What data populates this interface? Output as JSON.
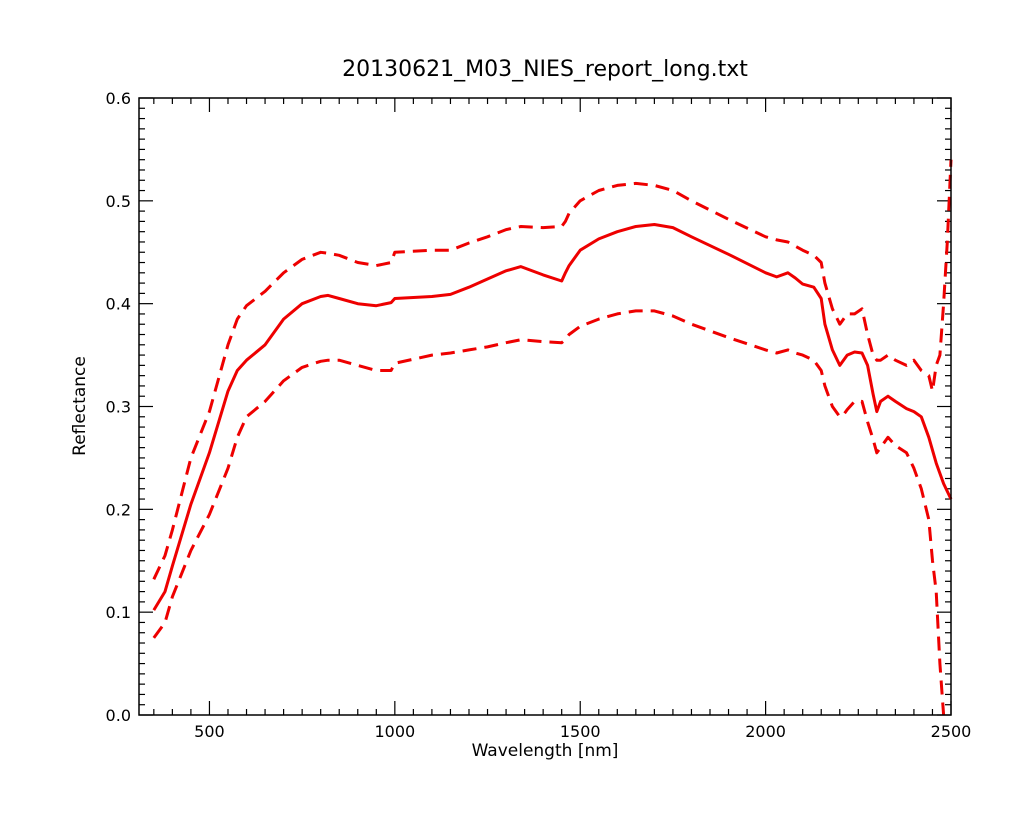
{
  "chart_data": {
    "type": "line",
    "title": "20130621_M03_NIES_report_long.txt",
    "xlabel": "Wavelength [nm]",
    "ylabel": "Reflectance",
    "xlim": [
      310,
      2500
    ],
    "ylim": [
      0.0,
      0.6
    ],
    "x_ticks": [
      500,
      1000,
      1500,
      2000,
      2500
    ],
    "x_tick_labels": [
      "500",
      "1000",
      "1500",
      "2000",
      "2500"
    ],
    "x_minor_step": 50,
    "y_ticks": [
      0.0,
      0.1,
      0.2,
      0.3,
      0.4,
      0.5,
      0.6
    ],
    "y_tick_labels": [
      "0.0",
      "0.1",
      "0.2",
      "0.3",
      "0.4",
      "0.5",
      "0.6"
    ],
    "y_minor_step": 0.01,
    "grid": false,
    "legend": "none",
    "color": "#ee0000",
    "series": [
      {
        "style": "solid",
        "x": [
          350,
          380,
          400,
          450,
          500,
          550,
          575,
          600,
          650,
          700,
          750,
          800,
          820,
          850,
          900,
          950,
          990,
          1000,
          1100,
          1150,
          1200,
          1250,
          1300,
          1340,
          1400,
          1450,
          1460,
          1470,
          1500,
          1550,
          1600,
          1650,
          1700,
          1750,
          1800,
          1900,
          2000,
          2030,
          2060,
          2080,
          2100,
          2130,
          2150,
          2160,
          2180,
          2200,
          2210,
          2220,
          2240,
          2260,
          2275,
          2290,
          2300,
          2310,
          2330,
          2350,
          2380,
          2400,
          2420,
          2440,
          2460,
          2480,
          2500
        ],
        "y": [
          0.102,
          0.12,
          0.145,
          0.205,
          0.255,
          0.315,
          0.335,
          0.345,
          0.36,
          0.385,
          0.4,
          0.407,
          0.408,
          0.405,
          0.4,
          0.398,
          0.401,
          0.405,
          0.407,
          0.409,
          0.416,
          0.424,
          0.432,
          0.436,
          0.428,
          0.422,
          0.43,
          0.437,
          0.452,
          0.463,
          0.47,
          0.475,
          0.477,
          0.474,
          0.465,
          0.448,
          0.43,
          0.426,
          0.43,
          0.425,
          0.419,
          0.416,
          0.405,
          0.38,
          0.355,
          0.34,
          0.345,
          0.35,
          0.353,
          0.352,
          0.34,
          0.312,
          0.295,
          0.305,
          0.31,
          0.305,
          0.298,
          0.295,
          0.29,
          0.27,
          0.245,
          0.225,
          0.21
        ]
      },
      {
        "style": "dashed",
        "x": [
          350,
          380,
          400,
          450,
          500,
          550,
          575,
          600,
          650,
          700,
          750,
          800,
          820,
          850,
          900,
          950,
          990,
          1000,
          1100,
          1150,
          1200,
          1250,
          1300,
          1340,
          1400,
          1450,
          1460,
          1470,
          1500,
          1550,
          1600,
          1650,
          1700,
          1750,
          1800,
          1900,
          2000,
          2030,
          2060,
          2080,
          2100,
          2130,
          2150,
          2160,
          2180,
          2200,
          2210,
          2220,
          2240,
          2260,
          2275,
          2290,
          2300,
          2310,
          2330,
          2350,
          2380,
          2400,
          2420,
          2440,
          2450,
          2460,
          2470,
          2480,
          2490,
          2500
        ],
        "y": [
          0.132,
          0.155,
          0.18,
          0.25,
          0.295,
          0.36,
          0.385,
          0.398,
          0.412,
          0.43,
          0.443,
          0.45,
          0.449,
          0.447,
          0.44,
          0.437,
          0.44,
          0.45,
          0.452,
          0.452,
          0.459,
          0.465,
          0.472,
          0.475,
          0.474,
          0.475,
          0.48,
          0.488,
          0.5,
          0.51,
          0.515,
          0.517,
          0.515,
          0.51,
          0.5,
          0.482,
          0.465,
          0.462,
          0.46,
          0.456,
          0.452,
          0.447,
          0.44,
          0.42,
          0.395,
          0.38,
          0.385,
          0.39,
          0.39,
          0.395,
          0.37,
          0.35,
          0.345,
          0.345,
          0.35,
          0.345,
          0.34,
          0.345,
          0.335,
          0.33,
          0.315,
          0.34,
          0.35,
          0.4,
          0.46,
          0.54
        ]
      },
      {
        "style": "dashed",
        "x": [
          350,
          380,
          400,
          450,
          500,
          550,
          575,
          600,
          650,
          700,
          750,
          800,
          820,
          850,
          900,
          950,
          990,
          1000,
          1100,
          1150,
          1200,
          1250,
          1300,
          1340,
          1400,
          1450,
          1460,
          1470,
          1500,
          1550,
          1600,
          1650,
          1700,
          1750,
          1800,
          1900,
          2000,
          2030,
          2060,
          2080,
          2100,
          2130,
          2150,
          2160,
          2180,
          2200,
          2210,
          2220,
          2240,
          2260,
          2275,
          2290,
          2300,
          2310,
          2330,
          2350,
          2380,
          2400,
          2420,
          2440,
          2450,
          2460,
          2470,
          2480
        ],
        "y": [
          0.075,
          0.09,
          0.115,
          0.16,
          0.195,
          0.24,
          0.27,
          0.29,
          0.305,
          0.325,
          0.338,
          0.344,
          0.345,
          0.345,
          0.34,
          0.335,
          0.335,
          0.342,
          0.35,
          0.352,
          0.355,
          0.358,
          0.362,
          0.365,
          0.363,
          0.362,
          0.365,
          0.37,
          0.378,
          0.385,
          0.39,
          0.393,
          0.393,
          0.388,
          0.38,
          0.367,
          0.355,
          0.352,
          0.355,
          0.352,
          0.35,
          0.345,
          0.335,
          0.32,
          0.3,
          0.29,
          0.292,
          0.297,
          0.305,
          0.305,
          0.285,
          0.268,
          0.255,
          0.26,
          0.27,
          0.262,
          0.255,
          0.24,
          0.22,
          0.19,
          0.15,
          0.12,
          0.05,
          0.0
        ]
      }
    ]
  }
}
